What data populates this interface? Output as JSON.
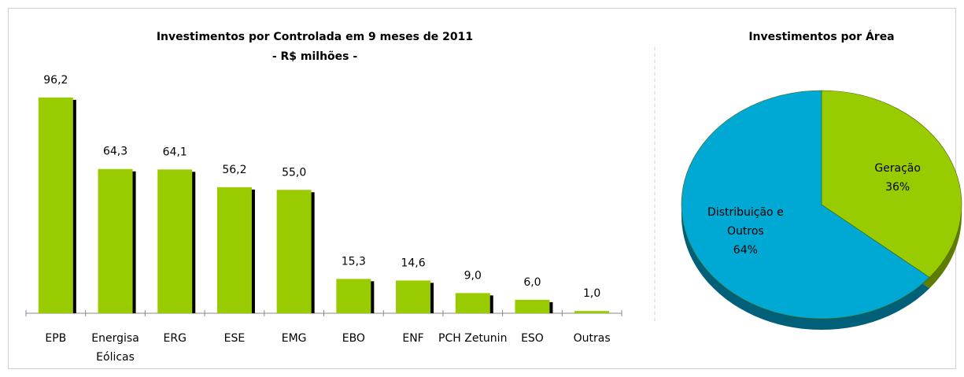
{
  "chart_data": [
    {
      "type": "bar",
      "title": "Investimentos por Controlada em 9 meses de 2011",
      "subtitle": "- R$ milhões -",
      "categories": [
        "EPB",
        "Energisa Eólicas",
        "ERG",
        "ESE",
        "EMG",
        "EBO",
        "ENF",
        "PCH Zetunin",
        "ESO",
        "Outras"
      ],
      "values": [
        96.2,
        64.3,
        64.1,
        56.2,
        55.0,
        15.3,
        14.6,
        9.0,
        6.0,
        1.0
      ],
      "value_labels": [
        "96,2",
        "64,3",
        "64,1",
        "56,2",
        "55,0",
        "15,3",
        "14,6",
        "9,0",
        "6,0",
        "1,0"
      ],
      "color": "#99cc00",
      "ylim": [
        0,
        100
      ]
    },
    {
      "type": "pie",
      "title": "Investimentos por Área",
      "categories": [
        "Geração",
        "Distribuição e Outros"
      ],
      "values": [
        36,
        64
      ],
      "value_labels": [
        "36%",
        "64%"
      ],
      "colors": [
        "#99cc00",
        "#00a8d4"
      ]
    }
  ]
}
